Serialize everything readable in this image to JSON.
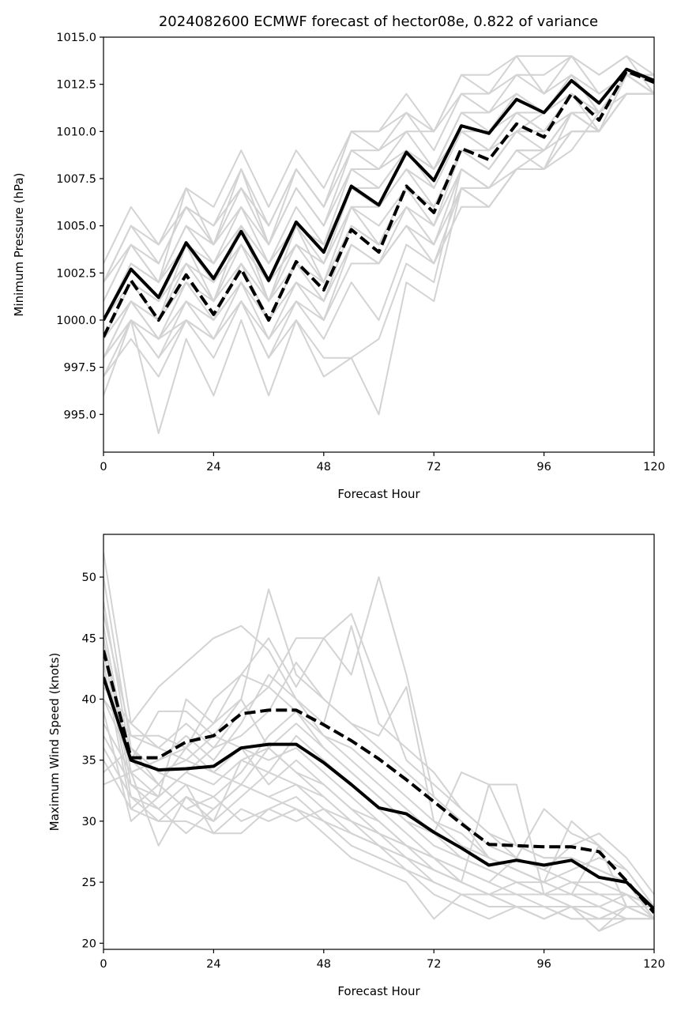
{
  "chart_data": [
    {
      "type": "line",
      "title": "2024082600 ECMWF forecast of hector08e, 0.822 of variance",
      "xlabel": "Forecast Hour",
      "ylabel": "Minimum Pressure (hPa)",
      "xlim": [
        0,
        120
      ],
      "ylim": [
        993,
        1015
      ],
      "xticks": [
        "0",
        "24",
        "48",
        "72",
        "96",
        "120"
      ],
      "yticks": [
        "995.0",
        "997.5",
        "1000.0",
        "1002.5",
        "1005.0",
        "1007.5",
        "1010.0",
        "1012.5",
        "1015.0"
      ],
      "x": [
        0,
        6,
        12,
        18,
        24,
        30,
        36,
        42,
        48,
        54,
        60,
        66,
        72,
        78,
        84,
        90,
        96,
        102,
        108,
        114,
        120
      ],
      "ensemble_color": "#d3d3d3",
      "main_color": "#000000",
      "ensemble": [
        [
          1003,
          1006,
          1004,
          1007,
          1006,
          1009,
          1006,
          1009,
          1007,
          1010,
          1010,
          1012,
          1010,
          1013,
          1013,
          1014,
          1012,
          1014,
          1013,
          1014,
          1013
        ],
        [
          1002,
          1005,
          1004,
          1006,
          1005,
          1008,
          1005,
          1008,
          1006,
          1009,
          1009,
          1011,
          1009,
          1012,
          1012,
          1013,
          1013,
          1014,
          1012,
          1013,
          1013
        ],
        [
          1002,
          1005,
          1003,
          1006,
          1005,
          1007,
          1005,
          1008,
          1006,
          1010,
          1009,
          1010,
          1010,
          1012,
          1011,
          1013,
          1012,
          1013,
          1011,
          1013,
          1012
        ],
        [
          1001,
          1004,
          1003,
          1006,
          1004,
          1007,
          1004,
          1007,
          1005,
          1009,
          1008,
          1010,
          1008,
          1011,
          1011,
          1012,
          1011,
          1013,
          1011,
          1013,
          1013
        ],
        [
          1001,
          1004,
          1002,
          1005,
          1004,
          1006,
          1004,
          1007,
          1005,
          1008,
          1008,
          1009,
          1008,
          1011,
          1010,
          1012,
          1011,
          1013,
          1012,
          1013,
          1012
        ],
        [
          1000,
          1003,
          1002,
          1005,
          1003,
          1006,
          1003,
          1006,
          1004,
          1008,
          1007,
          1009,
          1008,
          1010,
          1010,
          1011,
          1011,
          1012,
          1011,
          1013,
          1012
        ],
        [
          1000,
          1003,
          1002,
          1004,
          1003,
          1005,
          1003,
          1005,
          1004,
          1007,
          1007,
          1009,
          1007,
          1010,
          1009,
          1011,
          1010,
          1012,
          1011,
          1013,
          1013
        ],
        [
          1000,
          1002,
          1001,
          1004,
          1002,
          1005,
          1002,
          1005,
          1003,
          1007,
          1006,
          1008,
          1007,
          1010,
          1009,
          1011,
          1010,
          1012,
          1010,
          1013,
          1012
        ],
        [
          999,
          1002,
          1001,
          1003,
          1002,
          1004,
          1002,
          1004,
          1003,
          1006,
          1006,
          1008,
          1006,
          1009,
          1009,
          1010,
          1010,
          1012,
          1011,
          1013,
          1012
        ],
        [
          999,
          1002,
          1000,
          1003,
          1001,
          1004,
          1001,
          1004,
          1002,
          1006,
          1005,
          1007,
          1006,
          1009,
          1008,
          1010,
          1009,
          1011,
          1010,
          1013,
          1013
        ],
        [
          999,
          1001,
          1000,
          1002,
          1001,
          1003,
          1001,
          1003,
          1002,
          1005,
          1004,
          1007,
          1005,
          1009,
          1008,
          1010,
          1010,
          1011,
          1011,
          1013,
          1012
        ],
        [
          998,
          1001,
          999,
          1002,
          1000,
          1003,
          1000,
          1003,
          1001,
          1005,
          1004,
          1006,
          1005,
          1008,
          1007,
          1009,
          1009,
          1011,
          1010,
          1012,
          1012
        ],
        [
          998,
          1000,
          999,
          1001,
          1000,
          1002,
          1000,
          1002,
          1001,
          1004,
          1003,
          1006,
          1004,
          1008,
          1007,
          1009,
          1008,
          1011,
          1010,
          1013,
          1012
        ],
        [
          998,
          1000,
          998,
          1001,
          999,
          1002,
          999,
          1002,
          1000,
          1004,
          1003,
          1005,
          1004,
          1007,
          1007,
          1008,
          1009,
          1010,
          1010,
          1012,
          1012
        ],
        [
          997,
          1000,
          998,
          1000,
          999,
          1001,
          999,
          1001,
          1000,
          1003,
          1003,
          1005,
          1003,
          1007,
          1006,
          1008,
          1008,
          1010,
          1010,
          1012,
          1012
        ],
        [
          997,
          999,
          997,
          1000,
          998,
          1001,
          998,
          1001,
          999,
          1002,
          1000,
          1004,
          1003,
          1006,
          1006,
          1008,
          1008,
          1010,
          1010,
          1012,
          1012
        ],
        [
          996,
          1000,
          994,
          999,
          996,
          1000,
          996,
          1000,
          997,
          998,
          995,
          1002,
          1001,
          1007,
          1006,
          1008,
          1008,
          1009,
          1011,
          1012,
          1012
        ],
        [
          998,
          1001,
          999,
          1000,
          999,
          1001,
          998,
          1000,
          998,
          998,
          999,
          1003,
          1002,
          1008,
          1007,
          1009,
          1009,
          1011,
          1010,
          1012,
          1012
        ],
        [
          1002,
          1004,
          1002,
          1007,
          1004,
          1008,
          1004,
          1008,
          1006,
          1010,
          1010,
          1011,
          1010,
          1013,
          1012,
          1014,
          1014,
          1014,
          1013,
          1014,
          1012
        ],
        [
          999,
          1001,
          1000,
          1004,
          1001,
          1005,
          1001,
          1005,
          1002,
          1006,
          1004,
          1007,
          1006,
          1009,
          1008,
          1010,
          1011,
          1012,
          1011,
          1013,
          1013
        ]
      ],
      "series": [
        {
          "name": "solid",
          "style": "solid",
          "values": [
            1000.0,
            1002.7,
            1001.2,
            1004.1,
            1002.2,
            1004.7,
            1002.1,
            1005.2,
            1003.6,
            1007.1,
            1006.1,
            1008.9,
            1007.4,
            1010.3,
            1009.9,
            1011.7,
            1011.0,
            1012.7,
            1011.5,
            1013.3,
            1012.7
          ]
        },
        {
          "name": "dashed",
          "style": "dashed",
          "values": [
            999.1,
            1002.1,
            1000.0,
            1002.4,
            1000.3,
            1002.7,
            1000.0,
            1003.1,
            1001.6,
            1004.8,
            1003.6,
            1007.1,
            1005.7,
            1009.1,
            1008.5,
            1010.4,
            1009.7,
            1012.0,
            1010.6,
            1013.2,
            1012.6
          ]
        }
      ]
    },
    {
      "type": "line",
      "title": "",
      "xlabel": "Forecast Hour",
      "ylabel": "Maximum Wind Speed (knots)",
      "xlim": [
        0,
        120
      ],
      "ylim": [
        19.5,
        53.5
      ],
      "xticks": [
        "0",
        "24",
        "48",
        "72",
        "96",
        "120"
      ],
      "yticks": [
        "20",
        "25",
        "30",
        "35",
        "40",
        "45",
        "50"
      ],
      "x": [
        0,
        6,
        12,
        18,
        24,
        30,
        36,
        42,
        48,
        54,
        60,
        66,
        72,
        78,
        84,
        90,
        96,
        102,
        108,
        114,
        120
      ],
      "ensemble_color": "#d3d3d3",
      "main_color": "#000000",
      "ensemble": [
        [
          52,
          38,
          41,
          43,
          45,
          46,
          44,
          40,
          37,
          36,
          34,
          32,
          30,
          29,
          27,
          26,
          25,
          26,
          27,
          26,
          23
        ],
        [
          50,
          36,
          34,
          35,
          37,
          40,
          49,
          42,
          40,
          38,
          36,
          34,
          32,
          30,
          28,
          27,
          26,
          28,
          29,
          27,
          24
        ],
        [
          48,
          35,
          33,
          36,
          38,
          42,
          45,
          41,
          45,
          47,
          41,
          35,
          33,
          31,
          29,
          28,
          27,
          27,
          26,
          25,
          23
        ],
        [
          47,
          37,
          36,
          38,
          36,
          39,
          41,
          45,
          45,
          42,
          50,
          42,
          32,
          30,
          27,
          26,
          25,
          24,
          24,
          24,
          23
        ],
        [
          46,
          34,
          35,
          37,
          35,
          38,
          42,
          40,
          38,
          46,
          38,
          36,
          34,
          31,
          29,
          27,
          26,
          25,
          25,
          24,
          22
        ],
        [
          45,
          33,
          32,
          34,
          36,
          37,
          39,
          43,
          40,
          38,
          37,
          41,
          30,
          28,
          27,
          26,
          25,
          24,
          23,
          24,
          23
        ],
        [
          44,
          32,
          31,
          33,
          32,
          34,
          37,
          39,
          37,
          35,
          33,
          31,
          29,
          34,
          33,
          28,
          27,
          27,
          26,
          25,
          22
        ],
        [
          43,
          31,
          30,
          32,
          31,
          33,
          36,
          38,
          36,
          34,
          32,
          30,
          28,
          27,
          26,
          25,
          24,
          25,
          24,
          23,
          22
        ],
        [
          42,
          36,
          33,
          31,
          30,
          35,
          34,
          37,
          35,
          33,
          31,
          29,
          27,
          26,
          25,
          24,
          24,
          23,
          22,
          23,
          22
        ],
        [
          41,
          38,
          36,
          35,
          34,
          36,
          35,
          36,
          34,
          32,
          30,
          28,
          27,
          25,
          24,
          23,
          23,
          22,
          22,
          23,
          23
        ],
        [
          40,
          35,
          39,
          39,
          37,
          36,
          33,
          35,
          33,
          31,
          29,
          28,
          26,
          25,
          24,
          24,
          23,
          23,
          21,
          23,
          22
        ],
        [
          39,
          30,
          32,
          34,
          33,
          35,
          36,
          34,
          32,
          30,
          29,
          27,
          26,
          25,
          24,
          23,
          22,
          23,
          22,
          22,
          22
        ],
        [
          38,
          34,
          28,
          32,
          30,
          32,
          34,
          33,
          31,
          30,
          28,
          27,
          25,
          24,
          23,
          23,
          23,
          22,
          22,
          22,
          22
        ],
        [
          37,
          33,
          31,
          29,
          31,
          33,
          32,
          31,
          30,
          29,
          28,
          26,
          25,
          24,
          24,
          25,
          24,
          24,
          23,
          22,
          22
        ],
        [
          36,
          32,
          30,
          30,
          29,
          31,
          30,
          31,
          29,
          27,
          26,
          25,
          22,
          24,
          23,
          23,
          22,
          23,
          22,
          22,
          22
        ],
        [
          35,
          31,
          33,
          31,
          32,
          30,
          31,
          32,
          30,
          28,
          27,
          26,
          24,
          23,
          22,
          23,
          22,
          23,
          21,
          22,
          22
        ],
        [
          34,
          36,
          34,
          33,
          29,
          29,
          31,
          30,
          31,
          29,
          28,
          27,
          26,
          25,
          24,
          24,
          24,
          23,
          23,
          22,
          22
        ],
        [
          33,
          34,
          35,
          36,
          34,
          33,
          32,
          33,
          32,
          30,
          29,
          28,
          27,
          26,
          25,
          27,
          31,
          29,
          28,
          23,
          22
        ],
        [
          45,
          34,
          32,
          40,
          38,
          40,
          36,
          34,
          33,
          31,
          30,
          28,
          27,
          25,
          33,
          33,
          24,
          24,
          28,
          23,
          22
        ],
        [
          40,
          37,
          37,
          36,
          40,
          42,
          41,
          39,
          36,
          34,
          32,
          30,
          29,
          27,
          26,
          25,
          25,
          30,
          28,
          26,
          23
        ]
      ],
      "series": [
        {
          "name": "solid",
          "style": "solid",
          "values": [
            41.8,
            35.0,
            34.2,
            34.3,
            34.5,
            36.0,
            36.3,
            36.3,
            34.8,
            33.0,
            31.1,
            30.6,
            29.1,
            27.8,
            26.4,
            26.8,
            26.4,
            26.8,
            25.4,
            25.0,
            22.8
          ]
        },
        {
          "name": "dashed",
          "style": "dashed",
          "values": [
            44.0,
            35.2,
            35.2,
            36.5,
            37.0,
            38.8,
            39.1,
            39.1,
            37.9,
            36.6,
            35.1,
            33.4,
            31.6,
            29.8,
            28.1,
            28.0,
            27.9,
            27.9,
            27.5,
            25.1,
            22.5
          ]
        }
      ]
    }
  ]
}
